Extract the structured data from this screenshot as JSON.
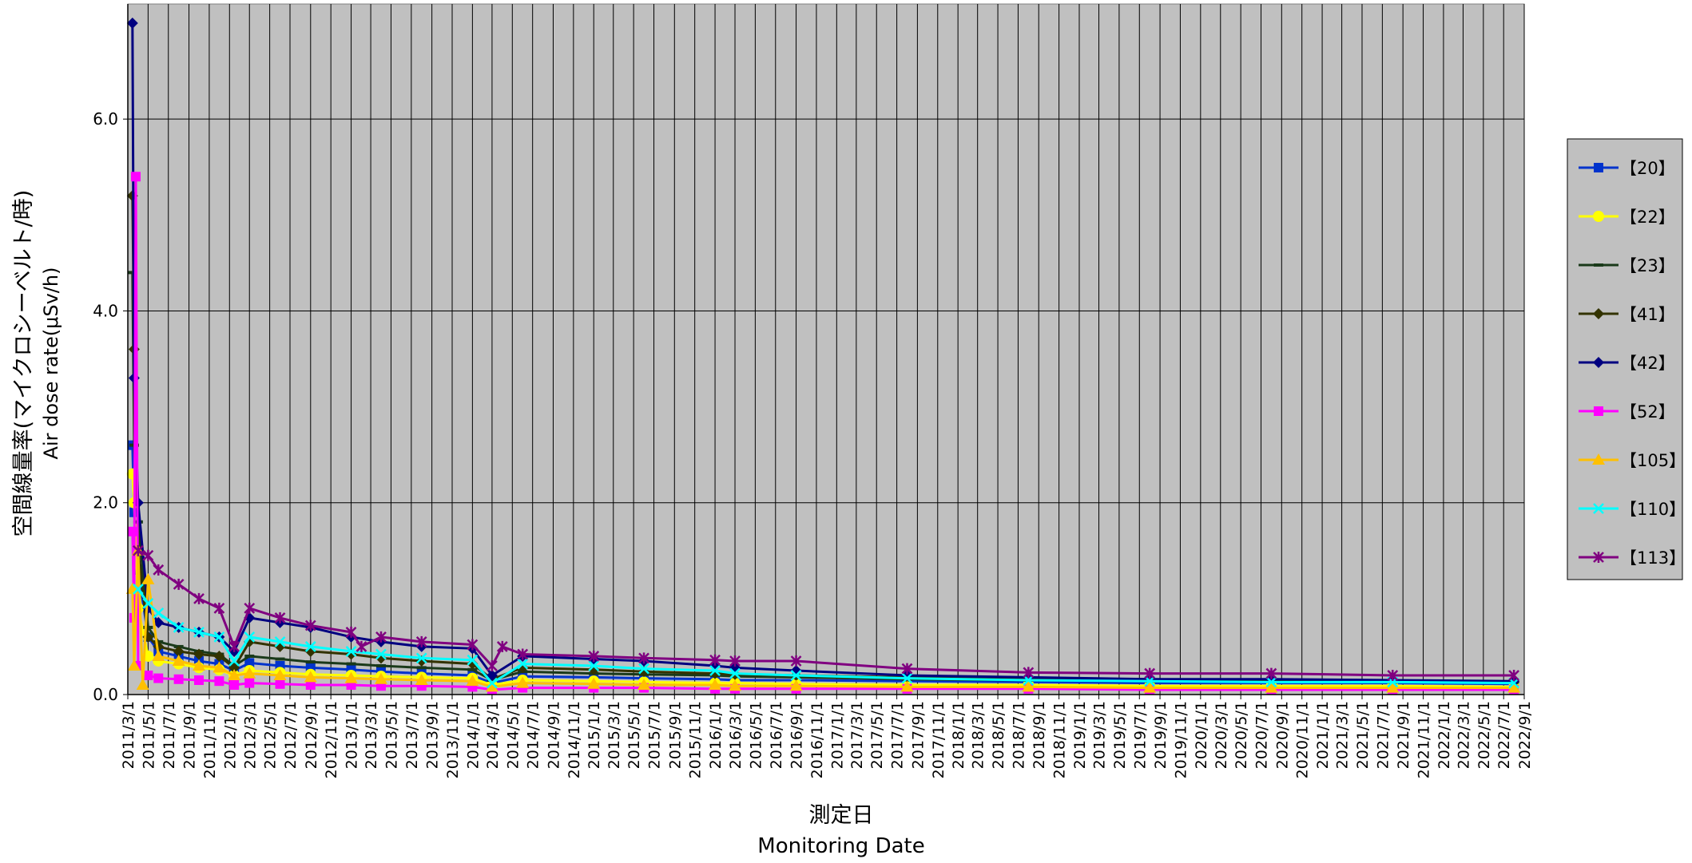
{
  "chart_data": {
    "type": "line",
    "ylabel_ja": "空間線量率(マイクロシーベルト/時)",
    "ylabel_en": "Air dose rate(μSv/h)",
    "xlabel_ja": "測定日",
    "xlabel_en": "Monitoring Date",
    "ylim": [
      0,
      7.2
    ],
    "yticks": [
      "0.0",
      "2.0",
      "4.0",
      "6.0"
    ],
    "ytick_values": [
      0,
      2,
      4,
      6
    ],
    "xlim": [
      "2011-03-01",
      "2022-09-01"
    ],
    "grid": true,
    "legend_position": "right",
    "xtick_labels": [
      "2011/3/1",
      "2011/5/1",
      "2011/7/1",
      "2011/9/1",
      "2011/11/1",
      "2012/1/1",
      "2012/3/1",
      "2012/5/1",
      "2012/7/1",
      "2012/9/1",
      "2012/11/1",
      "2013/1/1",
      "2013/3/1",
      "2013/5/1",
      "2013/7/1",
      "2013/9/1",
      "2013/11/1",
      "2014/1/1",
      "2014/3/1",
      "2014/5/1",
      "2014/7/1",
      "2014/9/1",
      "2014/11/1",
      "2015/1/1",
      "2015/3/1",
      "2015/5/1",
      "2015/7/1",
      "2015/9/1",
      "2015/11/1",
      "2016/1/1",
      "2016/3/1",
      "2016/5/1",
      "2016/7/1",
      "2016/9/1",
      "2016/11/1",
      "2017/1/1",
      "2017/3/1",
      "2017/5/1",
      "2017/7/1",
      "2017/9/1",
      "2017/11/1",
      "2018/1/1",
      "2018/3/1",
      "2018/5/1",
      "2018/7/1",
      "2018/9/1",
      "2018/11/1",
      "2019/1/1",
      "2019/3/1",
      "2019/5/1",
      "2019/7/1",
      "2019/9/1",
      "2019/11/1",
      "2020/1/1",
      "2020/3/1",
      "2020/5/1",
      "2020/7/1",
      "2020/9/1",
      "2020/11/1",
      "2021/1/1",
      "2021/3/1",
      "2021/5/1",
      "2021/7/1",
      "2021/9/1",
      "2021/11/1",
      "2022/1/1",
      "2022/3/1",
      "2022/5/1",
      "2022/7/1",
      "2022/9/1"
    ],
    "series": [
      {
        "name": "【20】",
        "color": "#0033cc",
        "marker": "square",
        "x": [
          "2011-03-15",
          "2011-03-20",
          "2011-04-01",
          "2011-05-01",
          "2011-06-01",
          "2011-08-01",
          "2011-10-01",
          "2011-12-01",
          "2012-01-15",
          "2012-03-01",
          "2012-06-01",
          "2012-09-01",
          "2013-01-01",
          "2013-04-01",
          "2013-08-01",
          "2014-01-01",
          "2014-03-01",
          "2014-06-01",
          "2015-01-01",
          "2015-06-01",
          "2016-01-01",
          "2016-03-01",
          "2016-09-01",
          "2017-08-01",
          "2018-08-01",
          "2019-08-01",
          "2020-08-01",
          "2021-08-01",
          "2022-08-01"
        ],
        "y": [
          2.6,
          1.9,
          1.3,
          0.6,
          0.45,
          0.4,
          0.35,
          0.32,
          0.25,
          0.33,
          0.3,
          0.28,
          0.26,
          0.24,
          0.22,
          0.2,
          0.12,
          0.19,
          0.18,
          0.17,
          0.16,
          0.15,
          0.15,
          0.14,
          0.13,
          0.12,
          0.12,
          0.12,
          0.11
        ]
      },
      {
        "name": "【22】",
        "color": "#ffff00",
        "marker": "circle",
        "x": [
          "2011-03-15",
          "2011-03-20",
          "2011-04-01",
          "2011-05-01",
          "2011-06-01",
          "2011-08-01",
          "2011-10-01",
          "2011-12-01",
          "2012-01-15",
          "2012-03-01",
          "2012-06-01",
          "2012-09-01",
          "2013-01-01",
          "2013-04-01",
          "2013-08-01",
          "2014-01-01",
          "2014-03-01",
          "2014-06-01",
          "2015-01-01",
          "2015-06-01",
          "2016-01-01",
          "2016-03-01",
          "2016-09-01",
          "2017-08-01",
          "2018-08-01",
          "2019-08-01",
          "2020-08-01",
          "2021-08-01",
          "2022-08-01"
        ],
        "y": [
          2.3,
          2.0,
          0.9,
          0.4,
          0.35,
          0.32,
          0.28,
          0.26,
          0.2,
          0.25,
          0.23,
          0.21,
          0.2,
          0.19,
          0.18,
          0.17,
          0.1,
          0.15,
          0.14,
          0.13,
          0.12,
          0.12,
          0.11,
          0.1,
          0.1,
          0.09,
          0.09,
          0.09,
          0.08
        ]
      },
      {
        "name": "【23】",
        "color": "#1a3a1a",
        "marker": "dash",
        "x": [
          "2011-03-15",
          "2011-03-20",
          "2011-04-01",
          "2011-05-01",
          "2011-06-01",
          "2011-08-01",
          "2011-10-01",
          "2011-12-01",
          "2012-01-15",
          "2012-03-01",
          "2012-06-01",
          "2012-09-01",
          "2013-01-01",
          "2013-04-01",
          "2013-08-01",
          "2014-01-01",
          "2014-03-01",
          "2014-06-01",
          "2015-01-01",
          "2015-06-01",
          "2016-01-01",
          "2016-03-01",
          "2016-09-01",
          "2017-08-01",
          "2018-08-01",
          "2019-08-01",
          "2020-08-01",
          "2021-08-01",
          "2022-08-01"
        ],
        "y": [
          4.4,
          2.6,
          1.8,
          0.7,
          0.55,
          0.5,
          0.45,
          0.42,
          0.3,
          0.4,
          0.37,
          0.34,
          0.32,
          0.3,
          0.28,
          0.26,
          0.15,
          0.24,
          0.22,
          0.21,
          0.2,
          0.19,
          0.18,
          0.16,
          0.15,
          0.14,
          0.14,
          0.13,
          0.13
        ]
      },
      {
        "name": "【41】",
        "color": "#333300",
        "marker": "diamond",
        "x": [
          "2011-03-15",
          "2011-03-20",
          "2011-04-01",
          "2011-05-01",
          "2011-06-01",
          "2011-08-01",
          "2011-10-01",
          "2011-12-01",
          "2012-01-15",
          "2012-03-01",
          "2012-06-01",
          "2012-09-01",
          "2013-01-01",
          "2013-04-01",
          "2013-08-01",
          "2014-01-01",
          "2014-03-01",
          "2014-06-01",
          "2015-01-01",
          "2015-06-01",
          "2016-01-01",
          "2016-03-01",
          "2016-09-01",
          "2017-08-01",
          "2018-08-01",
          "2019-08-01",
          "2020-08-01",
          "2021-08-01",
          "2022-08-01"
        ],
        "y": [
          5.2,
          3.6,
          1.5,
          0.6,
          0.5,
          0.45,
          0.42,
          0.4,
          0.28,
          0.55,
          0.5,
          0.45,
          0.42,
          0.38,
          0.35,
          0.32,
          0.16,
          0.28,
          0.26,
          0.24,
          0.22,
          0.21,
          0.2,
          0.18,
          0.16,
          0.15,
          0.14,
          0.14,
          0.13
        ]
      },
      {
        "name": "【42】",
        "color": "#000080",
        "marker": "diamond",
        "x": [
          "2011-03-15",
          "2011-03-20",
          "2011-04-01",
          "2011-05-01",
          "2011-06-01",
          "2011-08-01",
          "2011-10-01",
          "2011-12-01",
          "2012-01-15",
          "2012-03-01",
          "2012-06-01",
          "2012-09-01",
          "2013-01-01",
          "2013-04-01",
          "2013-08-01",
          "2014-01-01",
          "2014-03-01",
          "2014-06-01",
          "2015-01-01",
          "2015-06-01",
          "2016-01-01",
          "2016-03-01",
          "2016-09-01",
          "2017-08-01",
          "2018-08-01",
          "2019-08-01",
          "2020-08-01",
          "2021-08-01",
          "2022-08-01"
        ],
        "y": [
          7.0,
          3.3,
          2.0,
          0.9,
          0.75,
          0.7,
          0.65,
          0.6,
          0.45,
          0.8,
          0.75,
          0.7,
          0.6,
          0.55,
          0.5,
          0.48,
          0.2,
          0.4,
          0.37,
          0.35,
          0.3,
          0.28,
          0.25,
          0.2,
          0.18,
          0.16,
          0.16,
          0.15,
          0.14
        ]
      },
      {
        "name": "【52】",
        "color": "#ff00ff",
        "marker": "square",
        "x": [
          "2011-03-15",
          "2011-03-20",
          "2011-03-25",
          "2011-04-01",
          "2011-05-01",
          "2011-06-01",
          "2011-08-01",
          "2011-10-01",
          "2011-12-01",
          "2012-01-15",
          "2012-03-01",
          "2012-06-01",
          "2012-09-01",
          "2013-01-01",
          "2013-04-01",
          "2013-08-01",
          "2014-01-01",
          "2014-03-01",
          "2014-06-01",
          "2015-01-01",
          "2015-06-01",
          "2016-01-01",
          "2016-03-01",
          "2016-09-01",
          "2017-08-01",
          "2018-08-01",
          "2019-08-01",
          "2020-08-01",
          "2021-08-01",
          "2022-08-01"
        ],
        "y": [
          1.7,
          0.8,
          5.4,
          0.3,
          0.2,
          0.17,
          0.16,
          0.15,
          0.14,
          0.1,
          0.12,
          0.11,
          0.1,
          0.1,
          0.09,
          0.09,
          0.08,
          0.05,
          0.07,
          0.07,
          0.07,
          0.06,
          0.06,
          0.06,
          0.06,
          0.06,
          0.05,
          0.05,
          0.05,
          0.05
        ]
      },
      {
        "name": "【105】",
        "color": "#ffc000",
        "marker": "triangle",
        "x": [
          "2011-03-15",
          "2011-03-20",
          "2011-04-01",
          "2011-04-15",
          "2011-05-01",
          "2011-06-01",
          "2011-08-01",
          "2011-10-01",
          "2011-12-01",
          "2012-01-15",
          "2012-03-01",
          "2012-06-01",
          "2012-09-01",
          "2013-01-01",
          "2013-04-01",
          "2013-08-01",
          "2014-01-01",
          "2014-03-01",
          "2014-06-01",
          "2015-01-01",
          "2015-06-01",
          "2016-01-01",
          "2016-03-01",
          "2016-09-01",
          "2017-08-01",
          "2018-08-01",
          "2019-08-01",
          "2020-08-01",
          "2021-08-01",
          "2022-08-01"
        ],
        "y": [
          1.1,
          0.3,
          1.5,
          0.1,
          1.2,
          0.4,
          0.35,
          0.3,
          0.28,
          0.2,
          0.22,
          0.2,
          0.18,
          0.17,
          0.16,
          0.15,
          0.14,
          0.08,
          0.12,
          0.11,
          0.1,
          0.1,
          0.09,
          0.09,
          0.08,
          0.08,
          0.07,
          0.07,
          0.07,
          0.07
        ]
      },
      {
        "name": "【110】",
        "color": "#00ffff",
        "marker": "x",
        "x": [
          "2011-04-01",
          "2011-05-01",
          "2011-06-01",
          "2011-08-01",
          "2011-10-01",
          "2011-12-01",
          "2012-01-15",
          "2012-03-01",
          "2012-06-01",
          "2012-09-01",
          "2013-01-01",
          "2013-04-01",
          "2013-08-01",
          "2014-01-01",
          "2014-03-01",
          "2014-06-01",
          "2015-01-01",
          "2015-06-01",
          "2016-01-01",
          "2016-03-01",
          "2016-09-01",
          "2017-08-01",
          "2018-08-01",
          "2019-08-01",
          "2020-08-01",
          "2021-08-01",
          "2022-08-01"
        ],
        "y": [
          1.1,
          0.95,
          0.85,
          0.7,
          0.65,
          0.6,
          0.35,
          0.6,
          0.55,
          0.5,
          0.45,
          0.42,
          0.38,
          0.36,
          0.12,
          0.32,
          0.3,
          0.27,
          0.25,
          0.22,
          0.2,
          0.17,
          0.15,
          0.14,
          0.13,
          0.13,
          0.12
        ]
      },
      {
        "name": "【113】",
        "color": "#800080",
        "marker": "star",
        "x": [
          "2011-04-01",
          "2011-05-01",
          "2011-06-01",
          "2011-08-01",
          "2011-10-01",
          "2011-12-01",
          "2012-01-15",
          "2012-03-01",
          "2012-06-01",
          "2012-09-01",
          "2013-01-01",
          "2013-02-01",
          "2013-04-01",
          "2013-08-01",
          "2014-01-01",
          "2014-03-01",
          "2014-04-01",
          "2014-06-01",
          "2015-01-01",
          "2015-06-01",
          "2016-01-01",
          "2016-03-01",
          "2016-09-01",
          "2017-08-01",
          "2018-08-01",
          "2019-08-01",
          "2020-08-01",
          "2021-08-01",
          "2022-08-01"
        ],
        "y": [
          1.5,
          1.45,
          1.3,
          1.15,
          1.0,
          0.9,
          0.5,
          0.9,
          0.8,
          0.72,
          0.65,
          0.5,
          0.6,
          0.55,
          0.52,
          0.3,
          0.5,
          0.42,
          0.4,
          0.38,
          0.36,
          0.35,
          0.35,
          0.27,
          0.23,
          0.22,
          0.22,
          0.2,
          0.2
        ]
      }
    ]
  }
}
